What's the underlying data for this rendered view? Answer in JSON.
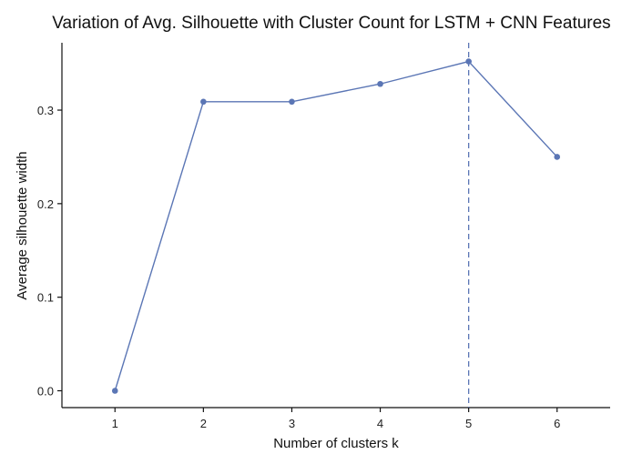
{
  "chart_data": {
    "type": "line",
    "title": "Variation of Avg. Silhouette with Cluster Count for LSTM + CNN Features",
    "xlabel": "Number of clusters k",
    "ylabel": "Average silhouette width",
    "x": [
      1,
      2,
      3,
      4,
      5,
      6
    ],
    "x_tick_labels": [
      "1",
      "2",
      "3",
      "4",
      "5",
      "6"
    ],
    "xlim": [
      0.4,
      6.6
    ],
    "y_ticks": [
      0.0,
      0.1,
      0.2,
      0.3
    ],
    "y_tick_labels": [
      "0.0",
      "0.1",
      "0.2",
      "0.3"
    ],
    "ylim": [
      -0.018,
      0.372
    ],
    "series": [
      {
        "name": "Average silhouette width",
        "values": [
          0.0,
          0.309,
          0.309,
          0.328,
          0.352,
          0.25
        ],
        "color": "#5b76b5"
      }
    ],
    "reference_line": {
      "orientation": "vertical",
      "x": 5,
      "style": "dashed",
      "color": "#5b76b5"
    },
    "grid": false,
    "legend": "none"
  }
}
